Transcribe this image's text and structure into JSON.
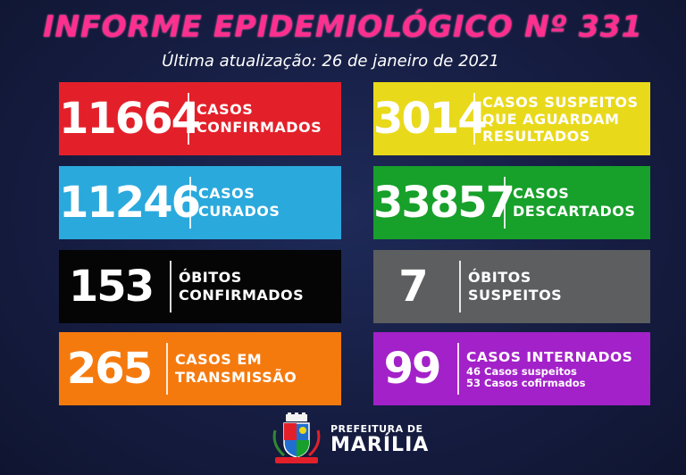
{
  "header": {
    "title": "INFORME EPIDEMIOLÓGICO Nº 331",
    "subtitle": "Última atualização: 26 de janeiro de 2021"
  },
  "colors": {
    "background": "#141c3d",
    "title": "#ff2f8f",
    "red": "#e3202a",
    "yellow": "#e9d91b",
    "blue": "#2aa9dc",
    "green": "#17a02a",
    "black": "#050505",
    "gray": "#5c5e5f",
    "orange": "#f57a0e",
    "purple": "#a321c8"
  },
  "cards": [
    {
      "number": "11664",
      "lines": [
        "CASOS",
        "CONFIRMADOS"
      ]
    },
    {
      "number": "3014",
      "lines": [
        "CASOS SUSPEITOS",
        "QUE AGUARDAM",
        "RESULTADOS"
      ]
    },
    {
      "number": "11246",
      "lines": [
        "CASOS",
        "CURADOS"
      ]
    },
    {
      "number": "33857",
      "lines": [
        "CASOS",
        "DESCARTADOS"
      ]
    },
    {
      "number": "153",
      "lines": [
        "ÓBITOS",
        "CONFIRMADOS"
      ]
    },
    {
      "number": "7",
      "lines": [
        "ÓBITOS",
        "SUSPEITOS"
      ]
    },
    {
      "number": "265",
      "lines": [
        "CASOS EM",
        "TRANSMISSÃO"
      ]
    },
    {
      "number": "99",
      "lines": [
        "CASOS INTERNADOS"
      ],
      "details": [
        "46 Casos suspeitos",
        "53 Casos cofirmados"
      ]
    }
  ],
  "footer": {
    "line1": "PREFEITURA DE",
    "line2": "MARÍLIA",
    "logo": "marilia-coat-of-arms"
  }
}
